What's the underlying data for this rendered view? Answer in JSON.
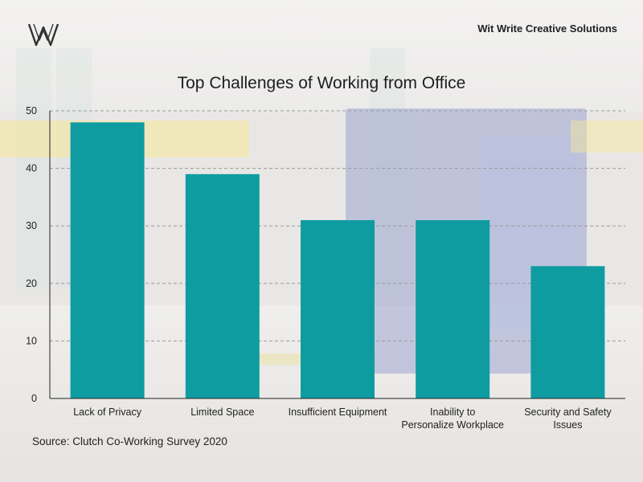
{
  "brand": {
    "name": "Wit Write Creative Solutions",
    "logo_icon": "ww-monogram-logo"
  },
  "source_note": "Source: Clutch Co-Working Survey 2020",
  "colors": {
    "bar": "#0f9ca1",
    "axis": "#222222",
    "grid": "#9a9a9a"
  },
  "chart_data": {
    "type": "bar",
    "title": "Top Challenges of Working from Office",
    "categories": [
      [
        "Lack of Privacy"
      ],
      [
        "Limited Space"
      ],
      [
        "Insufficient Equipment"
      ],
      [
        "Inability to",
        "Personalize Workplace"
      ],
      [
        "Security and Safety",
        "Issues"
      ]
    ],
    "values": [
      48,
      39,
      31,
      31,
      23
    ],
    "xlabel": "",
    "ylabel": "",
    "ylim": [
      0,
      50
    ],
    "yticks": [
      0,
      10,
      20,
      30,
      40,
      50
    ],
    "grid": true
  }
}
